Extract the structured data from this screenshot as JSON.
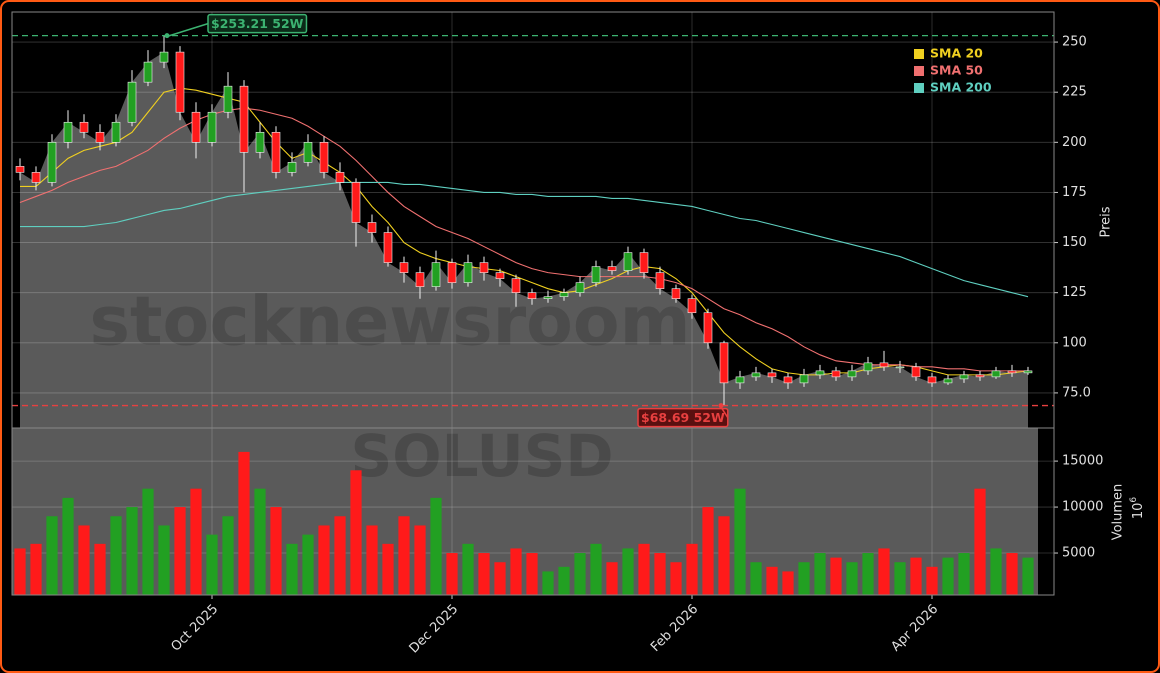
{
  "chart_data": {
    "type": "candlestick",
    "watermark": "stocknewsroom",
    "symbol": "SOLUSD",
    "categories": [
      null,
      null,
      null,
      null,
      null,
      null,
      null,
      null,
      null,
      null,
      null,
      null,
      "Oct 2025",
      null,
      null,
      null,
      null,
      null,
      null,
      null,
      null,
      null,
      null,
      null,
      null,
      null,
      null,
      "Dec 2025",
      null,
      null,
      null,
      null,
      null,
      null,
      null,
      null,
      null,
      null,
      null,
      null,
      null,
      null,
      "Feb 2026",
      null,
      null,
      null,
      null,
      null,
      null,
      null,
      null,
      null,
      null,
      null,
      null,
      null,
      null,
      "Apr 2026",
      null,
      null,
      null,
      null,
      null,
      null
    ],
    "open": [
      188,
      185,
      180,
      200,
      210,
      205,
      200,
      210,
      230,
      240,
      245,
      215,
      200,
      215,
      228,
      195,
      205,
      185,
      190,
      200,
      185,
      180,
      160,
      155,
      140,
      135,
      128,
      140,
      130,
      140,
      135,
      132,
      125,
      122,
      123,
      125,
      130,
      138,
      136,
      145,
      135,
      127,
      122,
      115,
      100,
      80,
      83,
      85,
      83,
      80,
      84,
      86,
      83,
      86,
      90,
      88,
      88,
      83,
      80,
      82,
      84,
      83,
      86,
      85
    ],
    "high": [
      192,
      188,
      204,
      216,
      214,
      209,
      214,
      236,
      246,
      253.21,
      248,
      220,
      219,
      235,
      231,
      210,
      208,
      195,
      204,
      203,
      190,
      182,
      164,
      158,
      143,
      138,
      146,
      142,
      144,
      143,
      137,
      134,
      127,
      126,
      127,
      133,
      141,
      141,
      148,
      147,
      138,
      129,
      124,
      117,
      101,
      86,
      88,
      87,
      85,
      87,
      89,
      88,
      89,
      93,
      96,
      91,
      90,
      85,
      84,
      86,
      86,
      88,
      89,
      88
    ],
    "low": [
      181,
      176,
      178,
      197,
      202,
      196,
      198,
      208,
      228,
      237,
      211,
      192,
      198,
      212,
      175,
      192,
      182,
      183,
      188,
      182,
      176,
      148,
      150,
      138,
      130,
      122,
      126,
      127,
      128,
      131,
      128,
      118,
      119,
      120,
      121,
      123,
      128,
      134,
      134,
      132,
      124,
      120,
      112,
      97,
      68.69,
      77,
      81,
      80,
      77,
      78,
      82,
      81,
      81,
      84,
      86,
      85,
      81,
      78,
      79,
      80,
      81,
      82,
      83,
      84
    ],
    "close": [
      185,
      180,
      200,
      210,
      205,
      200,
      210,
      230,
      240,
      245,
      215,
      200,
      215,
      228,
      195,
      205,
      185,
      190,
      200,
      185,
      180,
      160,
      155,
      140,
      135,
      128,
      140,
      130,
      140,
      135,
      132,
      125,
      122,
      123,
      125,
      130,
      138,
      136,
      145,
      135,
      127,
      122,
      115,
      100,
      80,
      83,
      85,
      83,
      80,
      84,
      86,
      83,
      86,
      90,
      88,
      88,
      83,
      80,
      82,
      84,
      83,
      86,
      85,
      86
    ],
    "up_color": "#22a022",
    "down_color": "#ff1a1a",
    "area_color": "#5a5a5a",
    "ylabel": "Preis",
    "ylim": [
      57.5,
      265
    ],
    "yticks": [
      {
        "value": 75,
        "label": "75.0"
      },
      100,
      125,
      150,
      175,
      200,
      225,
      250
    ],
    "grid": true,
    "legend": "upper right",
    "series": [
      {
        "name": "SMA 20",
        "color": "#f0d020",
        "values": [
          178,
          178,
          185,
          192,
          196,
          198,
          200,
          205,
          215,
          225,
          227,
          226,
          224,
          222,
          220,
          210,
          200,
          192,
          195,
          190,
          185,
          178,
          168,
          160,
          150,
          145,
          142,
          140,
          138,
          137,
          136,
          133,
          130,
          127,
          125,
          126,
          129,
          132,
          136,
          138,
          137,
          132,
          125,
          115,
          105,
          98,
          92,
          87,
          85,
          84,
          84,
          85,
          85,
          87,
          88,
          89,
          88,
          86,
          84,
          84,
          84,
          84,
          85,
          86
        ]
      },
      {
        "name": "SMA 50",
        "color": "#f07070",
        "values": [
          170,
          173,
          176,
          180,
          183,
          186,
          188,
          192,
          196,
          202,
          207,
          211,
          214,
          216,
          217,
          216,
          214,
          212,
          208,
          203,
          198,
          191,
          183,
          175,
          168,
          163,
          158,
          155,
          152,
          148,
          144,
          140,
          137,
          135,
          134,
          133,
          133,
          133,
          133,
          133,
          132,
          130,
          127,
          122,
          117,
          114,
          110,
          107,
          103,
          98,
          94,
          91,
          90,
          89,
          89,
          89,
          88,
          88,
          87,
          87,
          86,
          86,
          86,
          86
        ]
      },
      {
        "name": "SMA 200",
        "color": "#5fcfc0",
        "values": [
          158,
          158,
          158,
          158,
          158,
          159,
          160,
          162,
          164,
          166,
          167,
          169,
          171,
          173,
          174,
          175,
          176,
          177,
          178,
          179,
          180,
          180,
          180,
          180,
          179,
          179,
          178,
          177,
          176,
          175,
          175,
          174,
          174,
          173,
          173,
          173,
          173,
          172,
          172,
          171,
          170,
          169,
          168,
          166,
          164,
          162,
          161,
          159,
          157,
          155,
          153,
          151,
          149,
          147,
          145,
          143,
          140,
          137,
          134,
          131,
          129,
          127,
          125,
          123
        ]
      }
    ],
    "volume": {
      "values": [
        5500,
        6000,
        9000,
        11000,
        8000,
        6000,
        9000,
        10000,
        12000,
        8000,
        10000,
        12000,
        7000,
        9000,
        16000,
        12000,
        10000,
        6000,
        7000,
        8000,
        9000,
        14000,
        8000,
        6000,
        9000,
        8000,
        11000,
        5000,
        6000,
        5000,
        4000,
        5500,
        5000,
        3000,
        3500,
        5000,
        6000,
        4000,
        5500,
        6000,
        5000,
        4000,
        6000,
        10000,
        9000,
        12000,
        4000,
        3500,
        3000,
        4000,
        5000,
        4500,
        4000,
        5000,
        5500,
        4000,
        4500,
        3500,
        4500,
        5000,
        12000,
        5500,
        5000,
        4500
      ],
      "ylabel": "Volumen",
      "offset": {
        "base": "10",
        "exponent": "6"
      },
      "ylim": [
        435,
        18600
      ],
      "yticks": [
        5000,
        10000,
        15000
      ]
    },
    "annotations": [
      {
        "text": "$253.21 52W",
        "value": 253.21,
        "color": "#3cb371"
      },
      {
        "text": "$68.69 52W",
        "value": 68.69,
        "color": "#e84040"
      }
    ]
  }
}
